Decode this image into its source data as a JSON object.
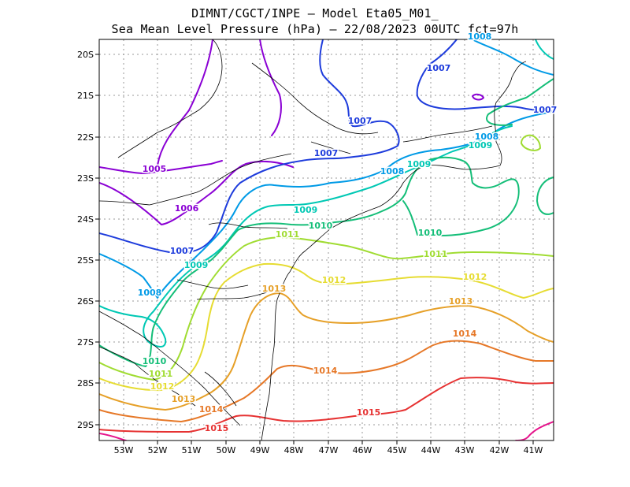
{
  "title_line1": "DIMNT/CGCT/INPE –  Model Eta05_M01_",
  "title_line2": "Sea Mean Level Pressure (hPa) – 22/08/2023 00UTC fct=97h",
  "lon_ticks": [
    "53W",
    "52W",
    "51W",
    "50W",
    "49W",
    "48W",
    "47W",
    "46W",
    "45W",
    "44W",
    "43W",
    "42W",
    "41W"
  ],
  "lat_ticks": [
    "20S",
    "21S",
    "22S",
    "23S",
    "24S",
    "25S",
    "26S",
    "27S",
    "28S",
    "29S"
  ],
  "colors": {
    "1005": "#8a00d4",
    "1006": "#8a00d4",
    "1007": "#1e3cdc",
    "1008": "#009ae6",
    "1009": "#00c8b4",
    "1010": "#14be78",
    "1011": "#a0dc32",
    "1012": "#e6dc32",
    "1013": "#e6a028",
    "1014": "#e67828",
    "1015": "#e63232",
    "1016": "#e6148c"
  },
  "contour_labels": [
    {
      "text": "1005",
      "level": "1005"
    },
    {
      "text": "1006",
      "level": "1006"
    },
    {
      "text": "1007",
      "level": "1007"
    },
    {
      "text": "1007",
      "level": "1007"
    },
    {
      "text": "1007",
      "level": "1007"
    },
    {
      "text": "1007",
      "level": "1007"
    },
    {
      "text": "1007",
      "level": "1007"
    },
    {
      "text": "1008",
      "level": "1008"
    },
    {
      "text": "1008",
      "level": "1008"
    },
    {
      "text": "1008",
      "level": "1008"
    },
    {
      "text": "1008",
      "level": "1008"
    },
    {
      "text": "1009",
      "level": "1009"
    },
    {
      "text": "1009",
      "level": "1009"
    },
    {
      "text": "1009",
      "level": "1009"
    },
    {
      "text": "1009",
      "level": "1009"
    },
    {
      "text": "1010",
      "level": "1010"
    },
    {
      "text": "1010",
      "level": "1010"
    },
    {
      "text": "1010",
      "level": "1010"
    },
    {
      "text": "1011",
      "level": "1011"
    },
    {
      "text": "1011",
      "level": "1011"
    },
    {
      "text": "1011",
      "level": "1011"
    },
    {
      "text": "1012",
      "level": "1012"
    },
    {
      "text": "1012",
      "level": "1012"
    },
    {
      "text": "1012",
      "level": "1012"
    },
    {
      "text": "1013",
      "level": "1013"
    },
    {
      "text": "1013",
      "level": "1013"
    },
    {
      "text": "1013",
      "level": "1013"
    },
    {
      "text": "1014",
      "level": "1014"
    },
    {
      "text": "1014",
      "level": "1014"
    },
    {
      "text": "1014",
      "level": "1014"
    },
    {
      "text": "1015",
      "level": "1015"
    },
    {
      "text": "1015",
      "level": "1015"
    }
  ]
}
